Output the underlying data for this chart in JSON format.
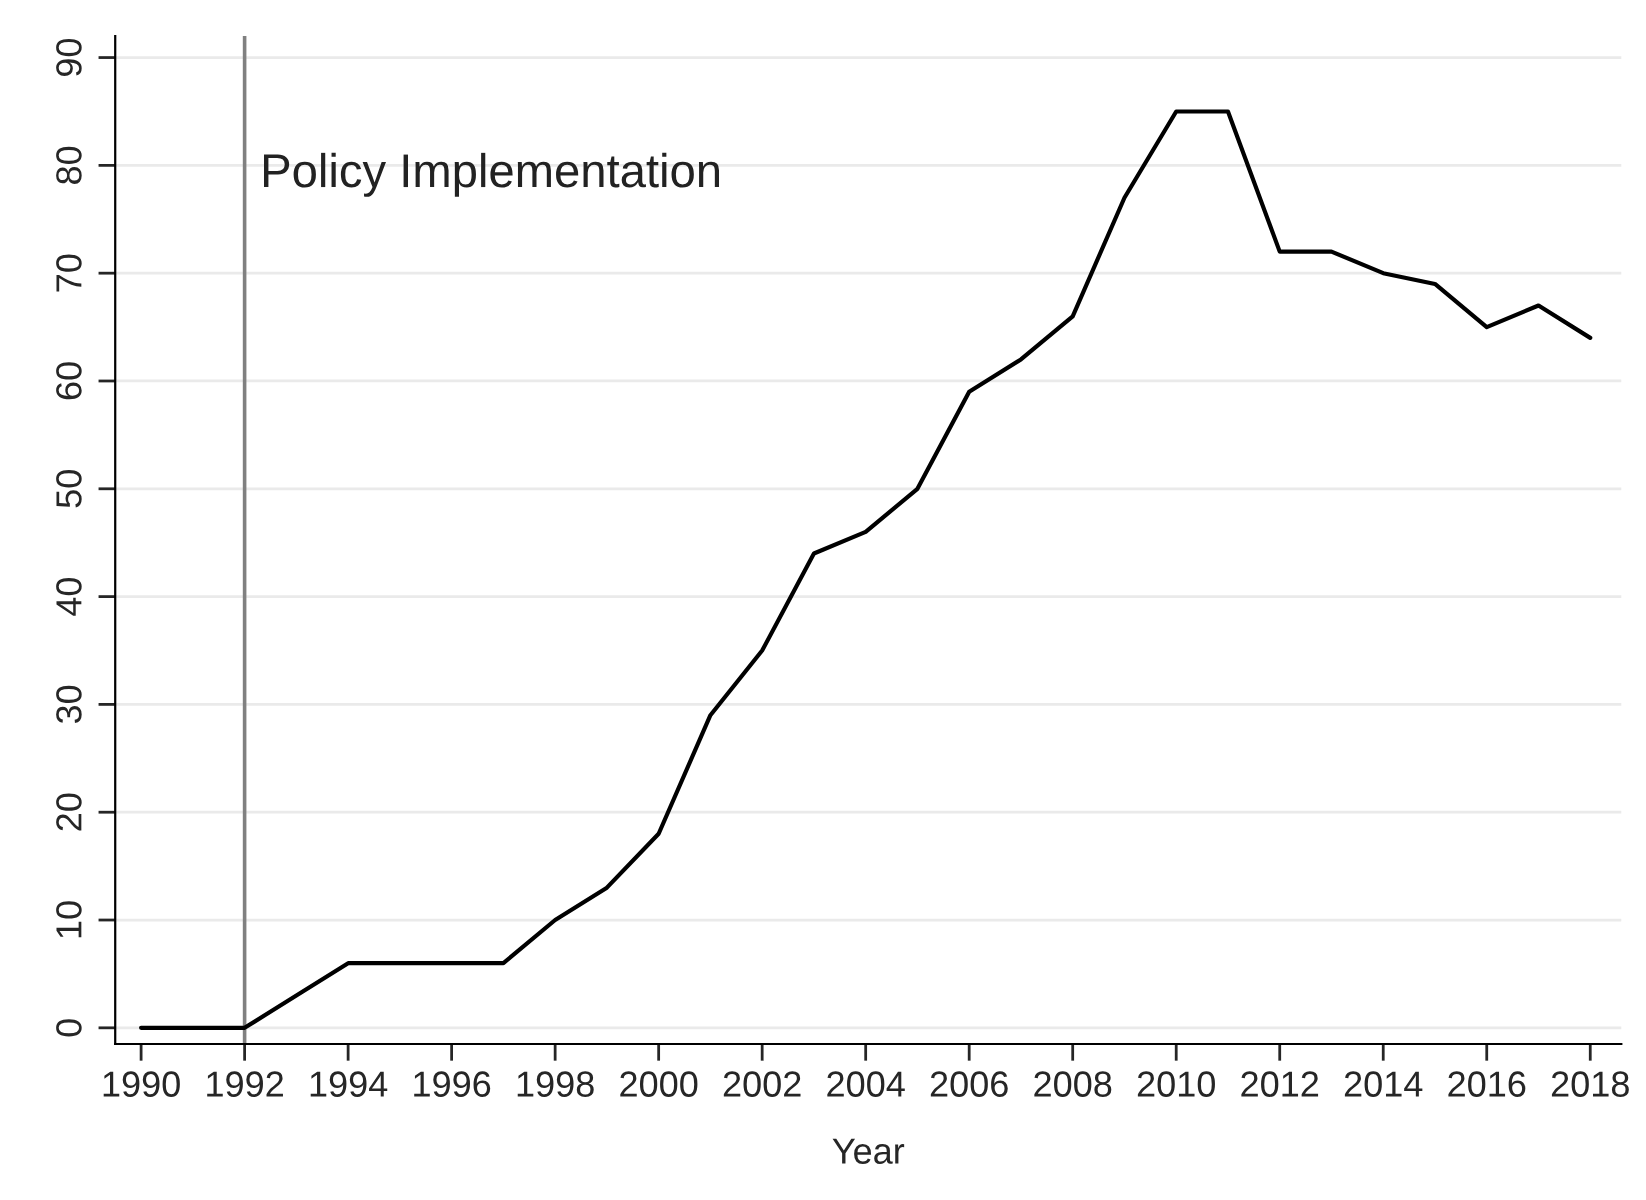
{
  "chart_data": {
    "type": "line",
    "xlabel": "Year",
    "x": [
      1990,
      1991,
      1992,
      1993,
      1994,
      1995,
      1996,
      1997,
      1998,
      1999,
      2000,
      2001,
      2002,
      2003,
      2004,
      2005,
      2006,
      2007,
      2008,
      2009,
      2010,
      2011,
      2012,
      2013,
      2014,
      2015,
      2016,
      2017,
      2018
    ],
    "series": [
      {
        "color": "#000000",
        "values": [
          0,
          0,
          0,
          3,
          6,
          6,
          6,
          6,
          10,
          13,
          18,
          29,
          35,
          44,
          46,
          50,
          59,
          62,
          66,
          77,
          85,
          85,
          72,
          72,
          70,
          69,
          65,
          67,
          64
        ]
      }
    ],
    "xlim": [
      1989.5,
      2018.6
    ],
    "xticks": [
      1990,
      1992,
      1994,
      1996,
      1998,
      2000,
      2002,
      2004,
      2006,
      2008,
      2010,
      2012,
      2014,
      2016,
      2018
    ],
    "ylim": [
      -1.5,
      92
    ],
    "yticks": [
      0,
      10,
      20,
      30,
      40,
      50,
      60,
      70,
      80,
      90
    ],
    "ref_lines": [
      {
        "axis": "x",
        "value": 1992,
        "label": "Policy Implementation",
        "color": "#808080"
      }
    ],
    "grid": "y",
    "legend": false,
    "marker": "none",
    "line_style": "solid"
  }
}
